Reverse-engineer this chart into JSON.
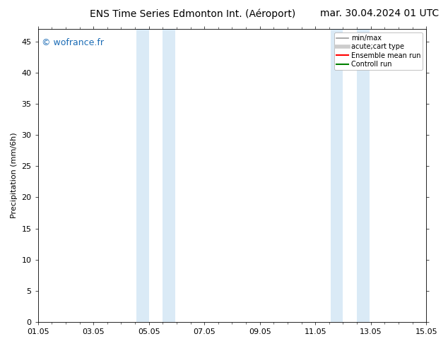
{
  "title_left": "ENS Time Series Edmonton Int. (Aéroport)",
  "title_right": "mar. 30.04.2024 01 UTC",
  "ylabel": "Precipitation (mm/6h)",
  "xlabel": "",
  "ylim": [
    0,
    47
  ],
  "yticks": [
    0,
    5,
    10,
    15,
    20,
    25,
    30,
    35,
    40,
    45
  ],
  "xtick_labels": [
    "01.05",
    "03.05",
    "05.05",
    "07.05",
    "09.05",
    "11.05",
    "13.05",
    "15.05"
  ],
  "xtick_positions": [
    0,
    2,
    4,
    6,
    8,
    10,
    12,
    14
  ],
  "xlim": [
    0,
    14
  ],
  "shaded_bands": [
    {
      "x_start": 3.55,
      "x_end": 4.0
    },
    {
      "x_start": 4.5,
      "x_end": 4.95
    },
    {
      "x_start": 10.55,
      "x_end": 11.0
    },
    {
      "x_start": 11.5,
      "x_end": 11.95
    }
  ],
  "shaded_color": "#daeaf6",
  "background_color": "#ffffff",
  "watermark_text": "© wofrance.fr",
  "watermark_color": "#1a6bb5",
  "legend_entries": [
    {
      "label": "min/max",
      "color": "#999999",
      "lw": 1.2
    },
    {
      "label": "acute;cart type",
      "color": "#cccccc",
      "lw": 4
    },
    {
      "label": "Ensemble mean run",
      "color": "#ff0000",
      "lw": 1.5
    },
    {
      "label": "Controll run",
      "color": "#008000",
      "lw": 1.5
    }
  ],
  "title_fontsize": 10,
  "axis_label_fontsize": 8,
  "tick_fontsize": 8,
  "watermark_fontsize": 9,
  "legend_fontsize": 7
}
